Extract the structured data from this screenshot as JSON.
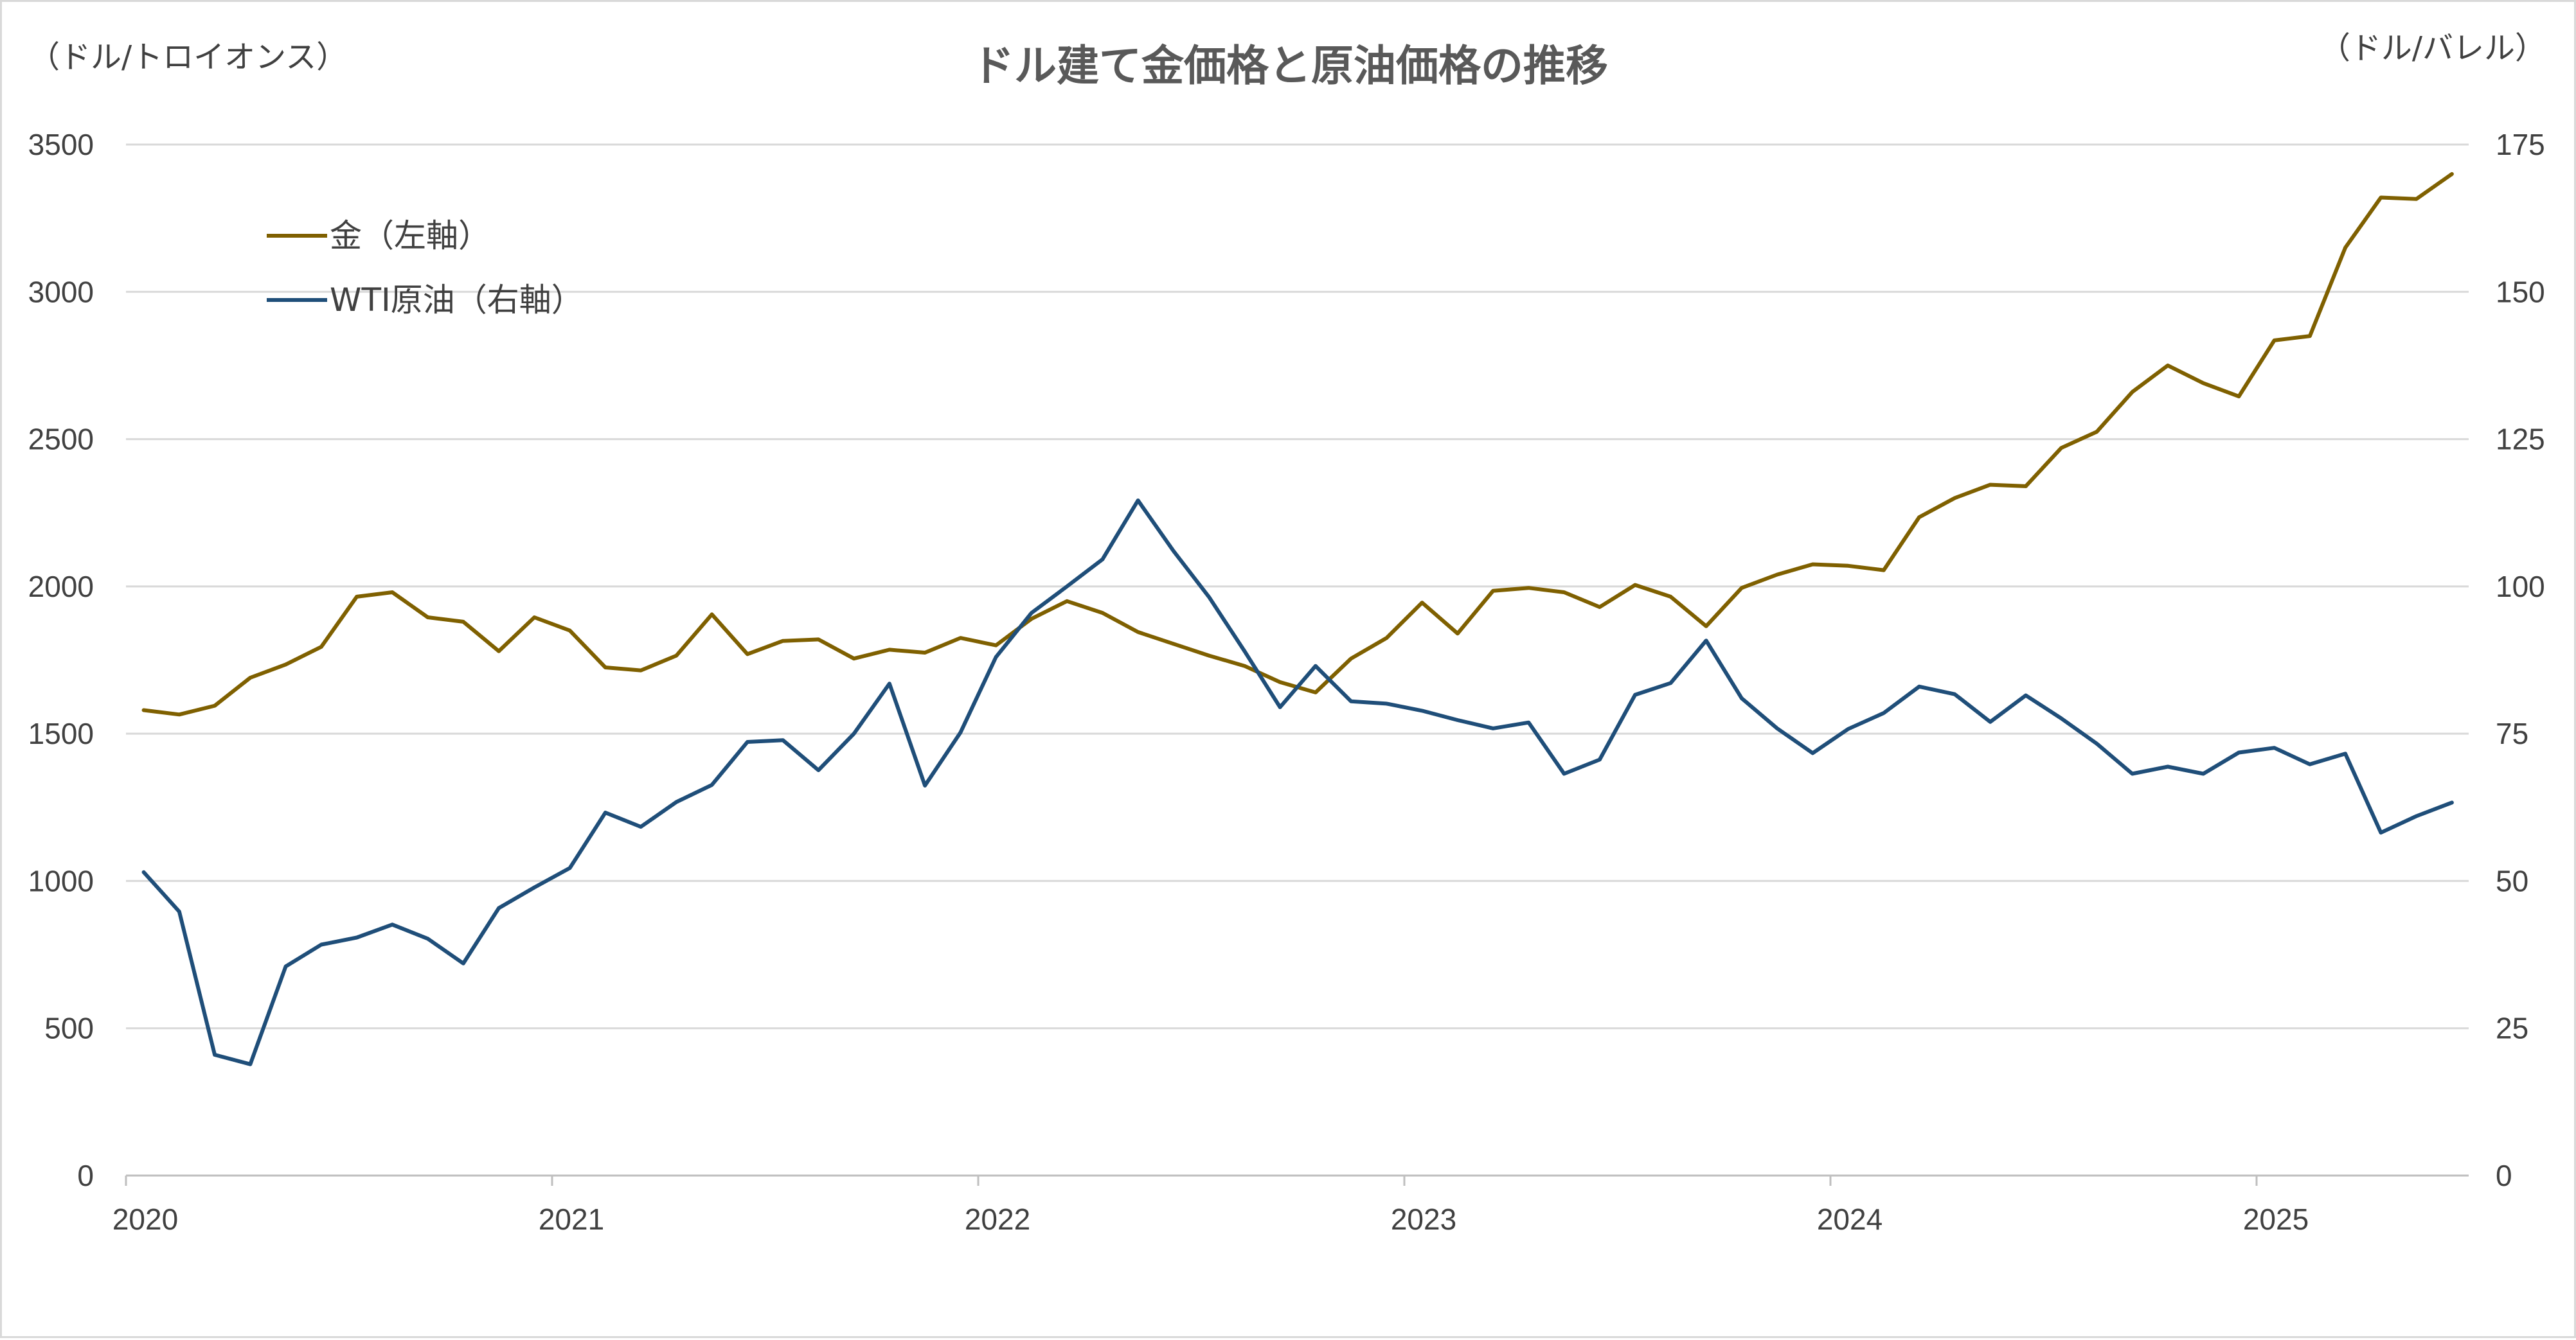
{
  "chart_data": {
    "type": "line",
    "title": "ドル建て金価格と原油価格の推移",
    "ylabel_left": "（ドル/トロイオンス）",
    "ylabel_right": "（ドル/バレル）",
    "x_tick_labels": [
      "2020",
      "2021",
      "2022",
      "2023",
      "2024",
      "2025"
    ],
    "y_left_ticks": [
      "0",
      "500",
      "1000",
      "1500",
      "2000",
      "2500",
      "3000",
      "3500"
    ],
    "y_right_ticks": [
      "0",
      "25",
      "50",
      "75",
      "100",
      "125",
      "150",
      "175"
    ],
    "ylim_left": [
      0,
      3500
    ],
    "ylim_right": [
      0,
      175
    ],
    "x_range": [
      "2020-01",
      "2025-07"
    ],
    "grid": true,
    "legend_position": "top-left",
    "x": [
      "2020-01",
      "2020-02",
      "2020-03",
      "2020-04",
      "2020-05",
      "2020-06",
      "2020-07",
      "2020-08",
      "2020-09",
      "2020-10",
      "2020-11",
      "2020-12",
      "2021-01",
      "2021-02",
      "2021-03",
      "2021-04",
      "2021-05",
      "2021-06",
      "2021-07",
      "2021-08",
      "2021-09",
      "2021-10",
      "2021-11",
      "2021-12",
      "2022-01",
      "2022-02",
      "2022-03",
      "2022-04",
      "2022-05",
      "2022-06",
      "2022-07",
      "2022-08",
      "2022-09",
      "2022-10",
      "2022-11",
      "2022-12",
      "2023-01",
      "2023-02",
      "2023-03",
      "2023-04",
      "2023-05",
      "2023-06",
      "2023-07",
      "2023-08",
      "2023-09",
      "2023-10",
      "2023-11",
      "2023-12",
      "2024-01",
      "2024-02",
      "2024-03",
      "2024-04",
      "2024-05",
      "2024-06",
      "2024-07",
      "2024-08",
      "2024-09",
      "2024-10",
      "2024-11",
      "2024-12",
      "2025-01",
      "2025-02",
      "2025-03",
      "2025-04",
      "2025-05",
      "2025-06"
    ],
    "series": [
      {
        "name": "金（左軸）",
        "axis": "left",
        "color": "#7f6000",
        "values": [
          1580,
          1565,
          1595,
          1690,
          1735,
          1795,
          1965,
          1980,
          1895,
          1880,
          1780,
          1895,
          1850,
          1725,
          1715,
          1765,
          1905,
          1770,
          1815,
          1820,
          1755,
          1785,
          1775,
          1825,
          1800,
          1890,
          1950,
          1910,
          1845,
          1805,
          1765,
          1730,
          1675,
          1640,
          1755,
          1825,
          1945,
          1840,
          1985,
          1995,
          1980,
          1930,
          2005,
          1965,
          1865,
          1995,
          2040,
          2075,
          2070,
          2055,
          2235,
          2300,
          2345,
          2340,
          2470,
          2525,
          2660,
          2750,
          2690,
          2645,
          2835,
          2850,
          3150,
          3320,
          3315,
          3400
        ]
      },
      {
        "name": "WTI原油（右軸）",
        "axis": "right",
        "color": "#1f4e79",
        "values": [
          51.5,
          44.8,
          20.5,
          18.9,
          35.5,
          39.2,
          40.4,
          42.6,
          40.2,
          36.0,
          45.4,
          48.9,
          52.2,
          61.6,
          59.2,
          63.4,
          66.3,
          73.6,
          73.9,
          68.8,
          75.0,
          83.5,
          66.2,
          75.2,
          88.0,
          95.5,
          100.0,
          104.6,
          114.6,
          106.0,
          98.2,
          89.0,
          79.5,
          86.5,
          80.5,
          80.1,
          78.9,
          77.3,
          75.9,
          76.9,
          68.2,
          70.6,
          81.6,
          83.6,
          90.8,
          81.0,
          75.9,
          71.7,
          75.8,
          78.5,
          83.0,
          81.7,
          77.0,
          81.5,
          77.6,
          73.3,
          68.2,
          69.4,
          68.2,
          71.8,
          72.6,
          69.8,
          71.6,
          58.2,
          61.0,
          63.3
        ]
      }
    ]
  }
}
